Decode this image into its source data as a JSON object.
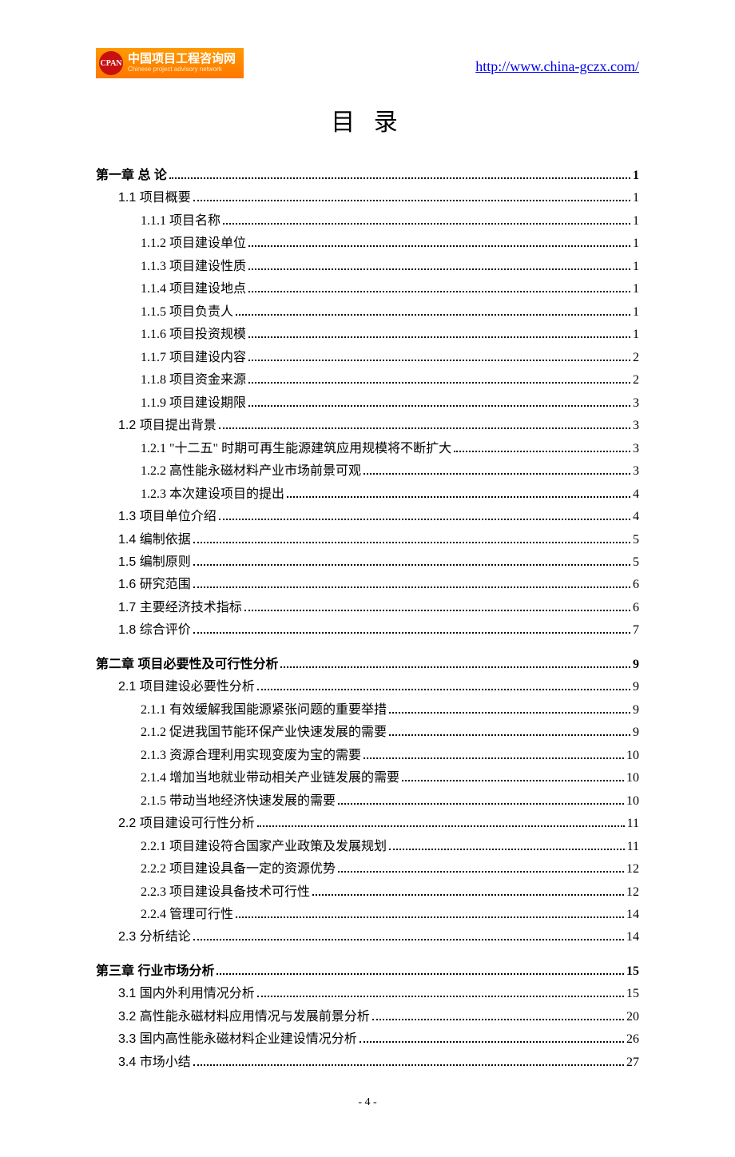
{
  "header": {
    "logo_icon": "CPAN",
    "logo_cn": "中国项目工程咨询网",
    "logo_en": "Chinese project advisory network",
    "url": "http://www.china-gczx.com/"
  },
  "title": "目 录",
  "page_number": "- 4 -",
  "toc": [
    {
      "level": 0,
      "label": "第一章  总 论",
      "page": "1"
    },
    {
      "level": 1,
      "label": "1.1 项目概要",
      "page": "1"
    },
    {
      "level": 2,
      "label": "1.1.1 项目名称",
      "page": "1"
    },
    {
      "level": 2,
      "label": "1.1.2 项目建设单位",
      "page": "1"
    },
    {
      "level": 2,
      "label": "1.1.3 项目建设性质",
      "page": "1"
    },
    {
      "level": 2,
      "label": "1.1.4 项目建设地点",
      "page": "1"
    },
    {
      "level": 2,
      "label": "1.1.5 项目负责人",
      "page": "1"
    },
    {
      "level": 2,
      "label": "1.1.6 项目投资规模",
      "page": "1"
    },
    {
      "level": 2,
      "label": "1.1.7 项目建设内容",
      "page": "2"
    },
    {
      "level": 2,
      "label": "1.1.8 项目资金来源",
      "page": "2"
    },
    {
      "level": 2,
      "label": "1.1.9 项目建设期限",
      "page": "3"
    },
    {
      "level": 1,
      "label": "1.2 项目提出背景",
      "page": "3"
    },
    {
      "level": 2,
      "label": "1.2.1 \"十二五\" 时期可再生能源建筑应用规模将不断扩大",
      "page": "3"
    },
    {
      "level": 2,
      "label": "1.2.2 高性能永磁材料产业市场前景可观",
      "page": "3"
    },
    {
      "level": 2,
      "label": "1.2.3 本次建设项目的提出",
      "page": "4"
    },
    {
      "level": 1,
      "label": "1.3 项目单位介绍",
      "page": "4"
    },
    {
      "level": 1,
      "label": "1.4 编制依据",
      "page": "5"
    },
    {
      "level": 1,
      "label": "1.5  编制原则",
      "page": "5"
    },
    {
      "level": 1,
      "label": "1.6 研究范围",
      "page": "6"
    },
    {
      "level": 1,
      "label": "1.7 主要经济技术指标",
      "page": "6"
    },
    {
      "level": 1,
      "label": "1.8 综合评价",
      "page": "7"
    },
    {
      "level": 0,
      "label": "第二章  项目必要性及可行性分析",
      "page": "9"
    },
    {
      "level": 1,
      "label": "2.1 项目建设必要性分析",
      "page": "9"
    },
    {
      "level": 2,
      "label": "2.1.1 有效缓解我国能源紧张问题的重要举措",
      "page": "9"
    },
    {
      "level": 2,
      "label": "2.1.2 促进我国节能环保产业快速发展的需要",
      "page": "9"
    },
    {
      "level": 2,
      "label": "2.1.3 资源合理利用实现变废为宝的需要",
      "page": "10"
    },
    {
      "level": 2,
      "label": "2.1.4 增加当地就业带动相关产业链发展的需要",
      "page": "10"
    },
    {
      "level": 2,
      "label": "2.1.5 带动当地经济快速发展的需要",
      "page": "10"
    },
    {
      "level": 1,
      "label": "2.2 项目建设可行性分析",
      "page": "11"
    },
    {
      "level": 2,
      "label": "2.2.1 项目建设符合国家产业政策及发展规划",
      "page": "11"
    },
    {
      "level": 2,
      "label": "2.2.2 项目建设具备一定的资源优势",
      "page": "12"
    },
    {
      "level": 2,
      "label": "2.2.3 项目建设具备技术可行性",
      "page": "12"
    },
    {
      "level": 2,
      "label": "2.2.4 管理可行性",
      "page": "14"
    },
    {
      "level": 1,
      "label": "2.3 分析结论",
      "page": "14"
    },
    {
      "level": 0,
      "label": "第三章  行业市场分析",
      "page": "15"
    },
    {
      "level": 1,
      "label": "3.1 国内外利用情况分析",
      "page": "15"
    },
    {
      "level": 1,
      "label": "3.2 高性能永磁材料应用情况与发展前景分析",
      "page": "20"
    },
    {
      "level": 1,
      "label": "3.3 国内高性能永磁材料企业建设情况分析",
      "page": "26"
    },
    {
      "level": 1,
      "label": "3.4 市场小结",
      "page": "27"
    }
  ]
}
